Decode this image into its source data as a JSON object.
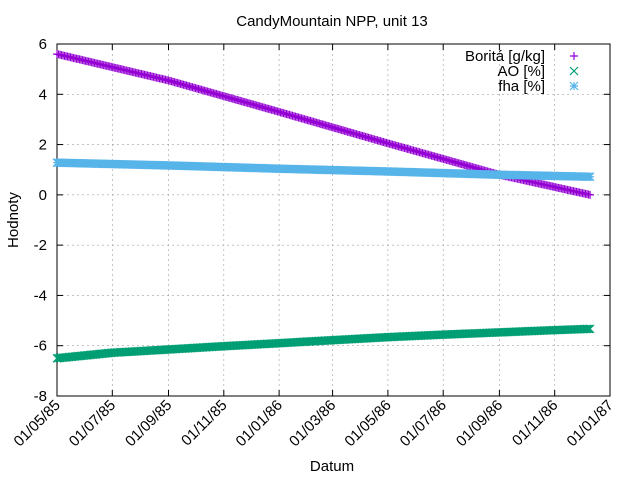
{
  "chart_data": {
    "type": "scatter",
    "title": "CandyMountain NPP, unit 13",
    "xlabel": "Datum",
    "ylabel": "Hodnoty",
    "x_tick_labels": [
      "01/05/85",
      "01/07/85",
      "01/09/85",
      "01/11/85",
      "01/01/86",
      "01/03/86",
      "01/05/86",
      "01/07/86",
      "01/09/86",
      "01/11/86",
      "01/01/87"
    ],
    "x_ticks": [
      "1985-05-01",
      "1985-07-01",
      "1985-09-01",
      "1985-11-01",
      "1986-01-01",
      "1986-03-01",
      "1986-05-01",
      "1986-07-01",
      "1986-09-01",
      "1986-11-01",
      "1987-01-01"
    ],
    "xlim": [
      "1985-05-01",
      "1987-01-01"
    ],
    "ylim": [
      -8,
      6
    ],
    "y_ticks": [
      -8,
      -6,
      -4,
      -2,
      0,
      2,
      4,
      6
    ],
    "grid": true,
    "legend_position": "top-right",
    "series": [
      {
        "name": "Boritá [g/kg]",
        "color": "#9400d3",
        "marker": "plus",
        "x": [
          "1985-05-01",
          "1985-09-01",
          "1986-01-01",
          "1986-05-01",
          "1986-09-01",
          "1986-12-10"
        ],
        "y": [
          5.6,
          4.55,
          3.3,
          2.05,
          0.8,
          0.0
        ]
      },
      {
        "name": "AO [%]",
        "color": "#009e73",
        "marker": "cross",
        "x": [
          "1985-05-01",
          "1985-07-01",
          "1985-09-01",
          "1985-11-01",
          "1986-01-01",
          "1986-03-01",
          "1986-05-01",
          "1986-07-01",
          "1986-09-01",
          "1986-11-01",
          "1986-12-10"
        ],
        "y": [
          -6.5,
          -6.28,
          -6.15,
          -6.02,
          -5.9,
          -5.78,
          -5.66,
          -5.56,
          -5.47,
          -5.38,
          -5.33
        ]
      },
      {
        "name": "fha [%]",
        "color": "#56b4e9",
        "marker": "star",
        "x": [
          "1985-05-01",
          "1985-09-01",
          "1986-01-01",
          "1986-05-01",
          "1986-09-01",
          "1986-12-10"
        ],
        "y": [
          1.28,
          1.17,
          1.04,
          0.93,
          0.8,
          0.72
        ]
      }
    ]
  }
}
